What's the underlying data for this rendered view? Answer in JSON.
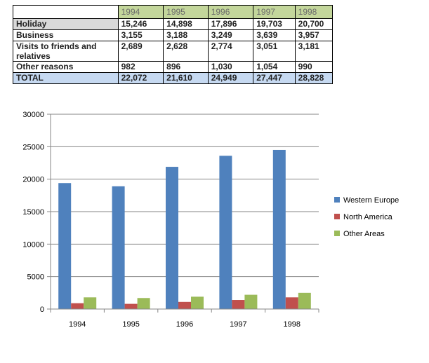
{
  "table": {
    "years": [
      "1994",
      "1995",
      "1996",
      "1997",
      "1998"
    ],
    "rows": [
      {
        "label": "Holiday",
        "values": [
          "15,246",
          "14,898",
          "17,896",
          "19,703",
          "20,700"
        ]
      },
      {
        "label": "Business",
        "values": [
          "3,155",
          "3,188",
          "3,249",
          "3,639",
          "3,957"
        ]
      },
      {
        "label": "Visits to friends and relatives",
        "values": [
          "2,689",
          "2,628",
          "2,774",
          "3,051",
          "3,181"
        ]
      },
      {
        "label": "Other reasons",
        "values": [
          "982",
          "896",
          "1,030",
          "1,054",
          "990"
        ]
      },
      {
        "label": "TOTAL",
        "values": [
          "22,072",
          "21,610",
          "24,949",
          "27,447",
          "28,828"
        ]
      }
    ]
  },
  "chart_data": {
    "type": "bar",
    "categories": [
      "1994",
      "1995",
      "1996",
      "1997",
      "1998"
    ],
    "series": [
      {
        "name": "Western Europe",
        "values": [
          19400,
          18900,
          21900,
          23600,
          24500
        ],
        "color": "#4f81bd"
      },
      {
        "name": "North America",
        "values": [
          900,
          800,
          1100,
          1400,
          1800
        ],
        "color": "#c0504d"
      },
      {
        "name": "Other Areas",
        "values": [
          1800,
          1700,
          1900,
          2200,
          2500
        ],
        "color": "#9bbb59"
      }
    ],
    "ylim": [
      0,
      30000
    ],
    "yticks": [
      0,
      5000,
      10000,
      15000,
      20000,
      25000,
      30000
    ],
    "grid": true,
    "legend": "right",
    "title": "",
    "xlabel": "",
    "ylabel": ""
  }
}
